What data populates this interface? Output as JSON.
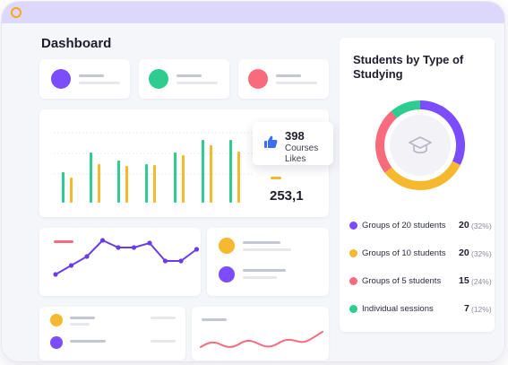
{
  "window": {
    "accent": "#ddd8fb",
    "dot_color": "#f5a623"
  },
  "dashboard": {
    "title": "Dashboard"
  },
  "stat_cards": [
    {
      "color": "#7c4dff"
    },
    {
      "color": "#2ecc8f"
    },
    {
      "color": "#f76b7d"
    }
  ],
  "bar_chart": {
    "type": "bar",
    "series": [
      {
        "color": "#2ecc8f",
        "values": [
          34,
          56,
          47,
          43,
          56,
          70,
          70
        ]
      },
      {
        "color": "#f5b82e",
        "values": [
          28,
          43,
          41,
          42,
          53,
          64,
          57
        ]
      }
    ]
  },
  "tooltip": {
    "icon": "thumbs-up-icon",
    "value": "398",
    "line1": "Courses",
    "line2": "Likes"
  },
  "stat": {
    "value": "253,1"
  },
  "line_chart": {
    "type": "line",
    "color": "#6a3de8",
    "values": [
      20,
      30,
      40,
      58,
      50,
      50,
      55,
      35,
      35,
      48
    ]
  },
  "wave_chart": {
    "type": "area",
    "color": "#f76b7d"
  },
  "chart_data": {
    "type": "pie",
    "title": "Students by Type of Studying",
    "categories": [
      "Groups of 20 students",
      "Groups of 10 students",
      "Groups of 5 students",
      "Individual sessions"
    ],
    "values": [
      20,
      20,
      15,
      7
    ],
    "percents": [
      32,
      32,
      24,
      12
    ],
    "colors": [
      "#7c4dff",
      "#f5b82e",
      "#f76b7d",
      "#2ecc8f"
    ],
    "center_icon": "graduation-cap-icon"
  },
  "legend": [
    {
      "name": "Groups of 20 students",
      "value": "20",
      "pct": "(32%)",
      "color": "#7c4dff"
    },
    {
      "name": "Groups of 10 students",
      "value": "20",
      "pct": "(32%)",
      "color": "#f5b82e"
    },
    {
      "name": "Groups of 5 students",
      "value": "15",
      "pct": "(24%)",
      "color": "#f76b7d"
    },
    {
      "name": "Individual sessions",
      "value": "7",
      "pct": "(12%)",
      "color": "#2ecc8f"
    }
  ],
  "mini_legend_a": [
    {
      "color": "#f5b82e"
    },
    {
      "color": "#7c4dff"
    }
  ],
  "mini_legend_b": [
    {
      "color": "#f5b82e"
    },
    {
      "color": "#7c4dff"
    }
  ]
}
